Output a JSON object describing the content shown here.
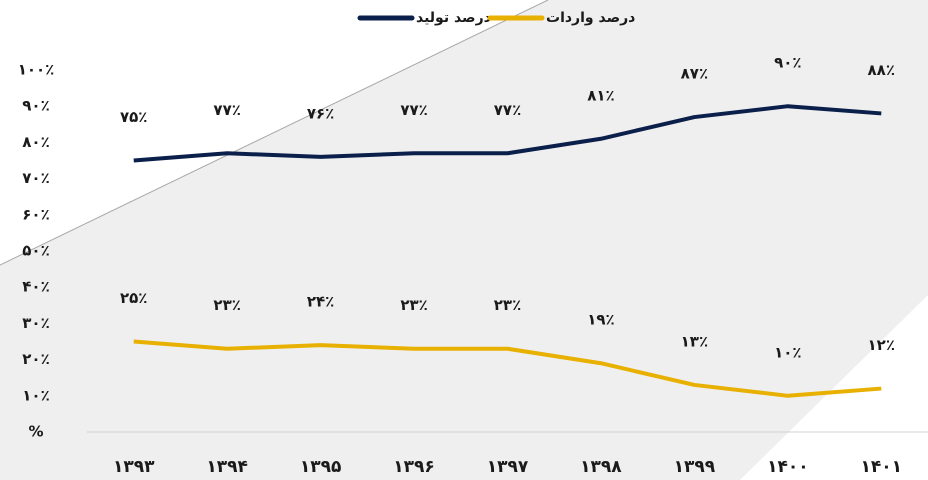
{
  "chart_data": {
    "type": "line",
    "categories": [
      "۱۳۹۳",
      "۱۳۹۴",
      "۱۳۹۵",
      "۱۳۹۶",
      "۱۳۹۷",
      "۱۳۹۸",
      "۱۳۹۹",
      "۱۴۰۰",
      "۱۴۰۱"
    ],
    "series": [
      {
        "name": "درصد تولید",
        "color": "#0b1f4b",
        "values": [
          75,
          77,
          76,
          77,
          77,
          81,
          87,
          90,
          88
        ],
        "value_labels": [
          "۷۵٪",
          "۷۷٪",
          "۷۶٪",
          "۷۷٪",
          "۷۷٪",
          "۸۱٪",
          "۸۷٪",
          "۹۰٪",
          "۸۸٪"
        ]
      },
      {
        "name": "درصد واردات",
        "color": "#e8b000",
        "values": [
          25,
          23,
          24,
          23,
          23,
          19,
          13,
          10,
          12
        ],
        "value_labels": [
          "۲۵٪",
          "۲۳٪",
          "۲۴٪",
          "۲۳٪",
          "۲۳٪",
          "۱۹٪",
          "۱۳٪",
          "۱۰٪",
          "۱۲٪"
        ]
      }
    ],
    "ylim": [
      0,
      100
    ],
    "yticks": [
      {
        "value": 0,
        "label": "%"
      },
      {
        "value": 10,
        "label": "۱۰٪"
      },
      {
        "value": 20,
        "label": "۲۰٪"
      },
      {
        "value": 30,
        "label": "۳۰٪"
      },
      {
        "value": 40,
        "label": "۴۰٪"
      },
      {
        "value": 50,
        "label": "۵۰٪"
      },
      {
        "value": 60,
        "label": "۶۰٪"
      },
      {
        "value": 70,
        "label": "۷۰٪"
      },
      {
        "value": 80,
        "label": "۸۰٪"
      },
      {
        "value": 90,
        "label": "۹۰٪"
      },
      {
        "value": 100,
        "label": "۱۰۰٪"
      }
    ],
    "legend": "top"
  }
}
